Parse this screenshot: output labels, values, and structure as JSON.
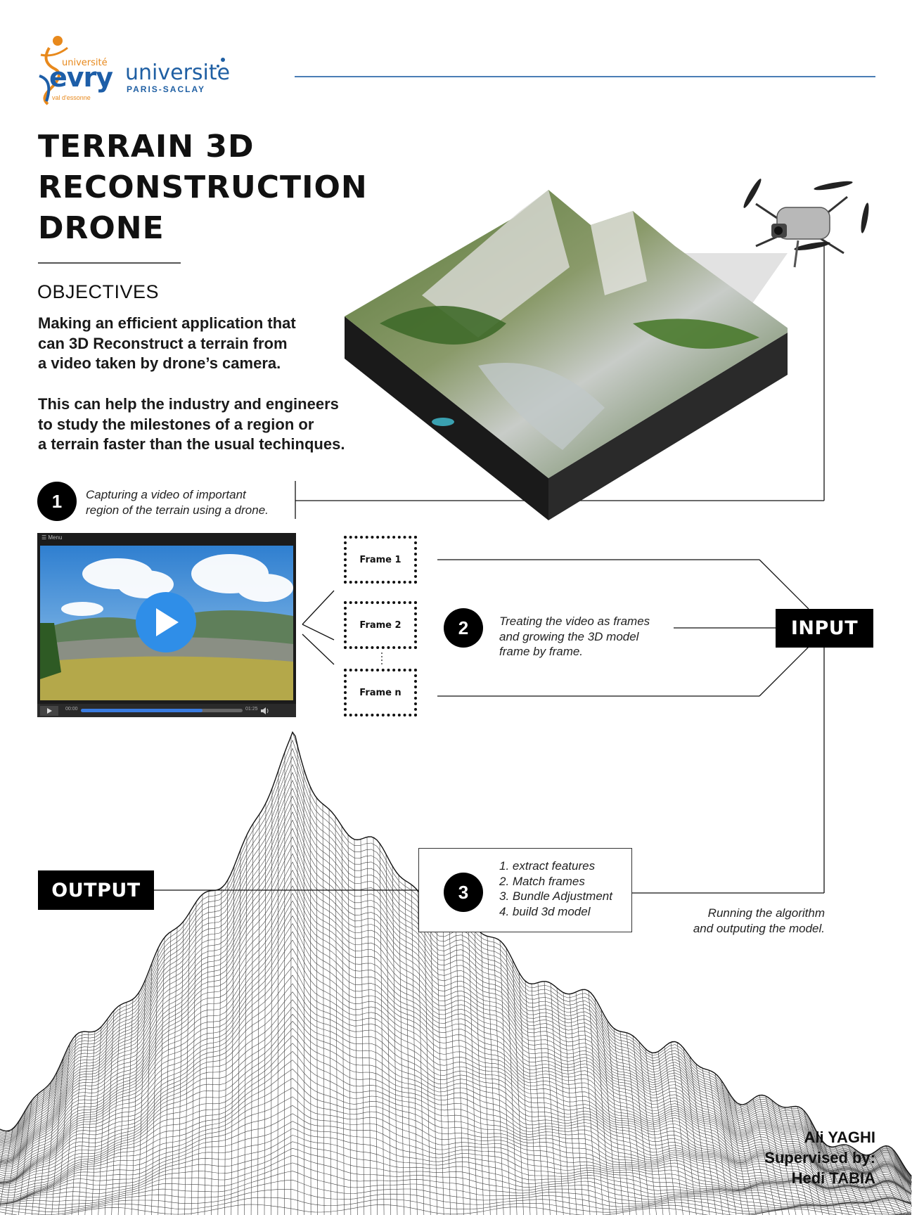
{
  "logos": {
    "evry": {
      "top": "université",
      "main": "evry",
      "sub": "val d'essonne"
    },
    "paris_saclay": {
      "main": "universite",
      "sub": "PARIS-SACLAY"
    }
  },
  "title": {
    "lines": [
      "TERRAIN 3D",
      "RECONSTRUCTION",
      "DRONE"
    ]
  },
  "objectives": {
    "heading": "OBJECTIVES",
    "paragraph1": [
      "Making an efficient application that",
      "can 3D Reconstruct a terrain from",
      "a video taken by drone’s camera."
    ],
    "paragraph2": [
      "This can help the industry and engineers",
      "to study the milestones of a region or",
      "a terrain faster than the usual techinques."
    ]
  },
  "steps": [
    {
      "number": "1",
      "text": [
        "Capturing a video of important",
        "region of the terrain using a drone."
      ]
    },
    {
      "number": "2",
      "text": [
        "Treating the video as frames",
        "and growing the 3D model",
        "frame by frame."
      ]
    },
    {
      "number": "3",
      "text": [
        "1. extract features",
        "2. Match frames",
        "3. Bundle Adjustment",
        "4. build 3d model"
      ]
    }
  ],
  "video_player": {
    "menu_label": "☰ Menu",
    "time_current": "00:00",
    "time_total": "01:25",
    "progress": 0.75
  },
  "frames": [
    "Frame 1",
    "Frame 2",
    "Frame n"
  ],
  "labels": {
    "input": "INPUT",
    "output": "OUTPUT"
  },
  "run_caption": [
    "Running the algorithm",
    "and outputing the model."
  ],
  "credits": [
    "Ali YAGHI",
    "Supervised by:",
    "Hedi TABIA"
  ],
  "colors": {
    "evry_orange": "#e8891c",
    "evry_blue": "#1d5ea8",
    "saclay_blue": "#1f5fa3",
    "header_line": "#4a7db5",
    "play_blue": "#2f8ee8"
  }
}
